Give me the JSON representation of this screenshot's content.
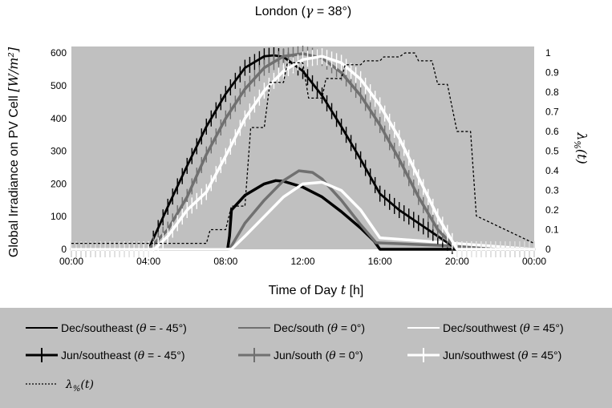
{
  "chart_data": {
    "type": "line",
    "title": "London (γ = 38°)",
    "title_prefix": "London (",
    "title_symbol": "γ",
    "title_suffix": " = 38°)",
    "xlabel_text": "Time of Day ",
    "xlabel_symbol": "t",
    "xlabel_unit": " [h]",
    "ylabel_text": "Global Irradiance on PV Cell ",
    "ylabel_unit": "[W/m²]",
    "y2label_main": "λ",
    "y2label_sub": "%",
    "y2label_arg": "(t)",
    "xlim": [
      0,
      24
    ],
    "ylim": [
      0,
      620
    ],
    "y2lim": [
      0,
      1.033
    ],
    "x_ticks": [
      "00:00",
      "04:00",
      "08:00",
      "12:00",
      "16:00",
      "20:00",
      "00:00"
    ],
    "y_ticks": [
      "0",
      "100",
      "200",
      "300",
      "400",
      "500",
      "600"
    ],
    "y2_ticks": [
      "0",
      "0.1",
      "0.2",
      "0.3",
      "0.4",
      "0.5",
      "0.6",
      "0.7",
      "0.8",
      "0.9",
      "1"
    ],
    "grid": false,
    "legend_placement": "bottom",
    "series": [
      {
        "name": "Dec/southeast (θ = - 45°)",
        "label_prefix": "Dec/southeast (",
        "label_symbol": "θ",
        "label_suffix": " = - 45°)",
        "color": "#000000",
        "width": 3.5,
        "marker": "none",
        "axis": "left",
        "x": [
          0,
          8.1,
          8.2,
          8.3,
          9,
          10,
          10.6,
          11,
          12,
          13,
          14,
          15,
          15.7,
          16,
          24
        ],
        "y": [
          0,
          0,
          40,
          120,
          165,
          200,
          210,
          208,
          190,
          160,
          115,
          65,
          25,
          0,
          0
        ]
      },
      {
        "name": "Dec/south (θ = 0°)",
        "label_prefix": "Dec/south (",
        "label_symbol": "θ",
        "label_suffix": " = 0°)",
        "color": "#707070",
        "width": 3.5,
        "marker": "none",
        "axis": "left",
        "x": [
          0,
          8.2,
          9,
          10,
          11,
          11.8,
          12.5,
          13,
          14,
          15,
          15.8,
          24
        ],
        "y": [
          0,
          0,
          80,
          150,
          210,
          240,
          235,
          215,
          150,
          75,
          20,
          0
        ]
      },
      {
        "name": "Dec/southwest (θ = 45°)",
        "label_prefix": "Dec/southwest (",
        "label_symbol": "θ",
        "label_suffix": " = 45°)",
        "color": "#ffffff",
        "width": 3.5,
        "marker": "none",
        "axis": "left",
        "x": [
          0,
          8.3,
          9,
          10,
          11,
          12,
          13,
          14,
          15,
          16,
          24
        ],
        "y": [
          0,
          0,
          40,
          100,
          160,
          200,
          205,
          180,
          120,
          35,
          0
        ]
      },
      {
        "name": "Jun/southeast (θ = - 45°)",
        "label_prefix": "Jun/southeast (",
        "label_symbol": "θ",
        "label_suffix": " = - 45°)",
        "color": "#000000",
        "width": 2.8,
        "marker": "vtick",
        "axis": "left",
        "x": [
          0,
          4,
          5,
          6,
          7,
          8,
          9,
          10,
          10.5,
          11,
          12,
          13,
          14,
          15,
          16,
          17,
          18,
          19,
          20,
          24
        ],
        "y": [
          0,
          0,
          130,
          255,
          375,
          475,
          555,
          590,
          593,
          588,
          545,
          470,
          375,
          275,
          170,
          120,
          80,
          40,
          0,
          0
        ]
      },
      {
        "name": "Jun/south (θ = 0°)",
        "label_prefix": "Jun/south (",
        "label_symbol": "θ",
        "label_suffix": " = 0°)",
        "color": "#707070",
        "width": 3.5,
        "marker": "vtick",
        "axis": "left",
        "x": [
          0,
          4,
          5,
          6,
          7,
          8,
          9,
          10,
          11,
          12,
          13,
          14,
          15,
          16,
          17,
          18,
          19,
          20,
          24
        ],
        "y": [
          0,
          0,
          60,
          160,
          290,
          400,
          490,
          555,
          590,
          598,
          585,
          540,
          470,
          380,
          275,
          160,
          60,
          0,
          0
        ]
      },
      {
        "name": "Jun/southwest (θ = 45°)",
        "label_prefix": "Jun/southwest (",
        "label_symbol": "θ",
        "label_suffix": " = 45°)",
        "color": "#ffffff",
        "width": 3.5,
        "marker": "vtick",
        "axis": "left",
        "x": [
          0,
          4.3,
          5,
          6,
          7,
          8,
          9,
          10,
          11,
          12,
          13,
          14,
          15,
          16,
          17,
          18,
          19,
          20,
          24
        ],
        "y": [
          0,
          0,
          40,
          120,
          175,
          285,
          400,
          485,
          545,
          580,
          590,
          570,
          520,
          440,
          340,
          220,
          100,
          0,
          0
        ]
      },
      {
        "name": "λ%(t)",
        "label_main": "λ",
        "label_sub": "%",
        "label_arg": "(t)",
        "color": "#000000",
        "width": 1.3,
        "marker": "none",
        "dash": "3,2.5",
        "axis": "right",
        "x": [
          0,
          7,
          7.2,
          8,
          8.3,
          9,
          9.3,
          10,
          10.3,
          11,
          11.2,
          12,
          12.3,
          13,
          13.2,
          14,
          14.2,
          15,
          15.2,
          16,
          16.2,
          17,
          17.3,
          17.8,
          18,
          18.7,
          19,
          19.5,
          20,
          20.7,
          21,
          24
        ],
        "y": [
          0.03,
          0.03,
          0.1,
          0.1,
          0.22,
          0.22,
          0.62,
          0.62,
          0.85,
          0.85,
          0.95,
          0.95,
          0.77,
          0.77,
          0.87,
          0.87,
          0.94,
          0.94,
          0.96,
          0.96,
          0.98,
          0.98,
          1.0,
          1.0,
          0.96,
          0.96,
          0.84,
          0.84,
          0.6,
          0.6,
          0.17,
          0.03
        ]
      }
    ]
  }
}
